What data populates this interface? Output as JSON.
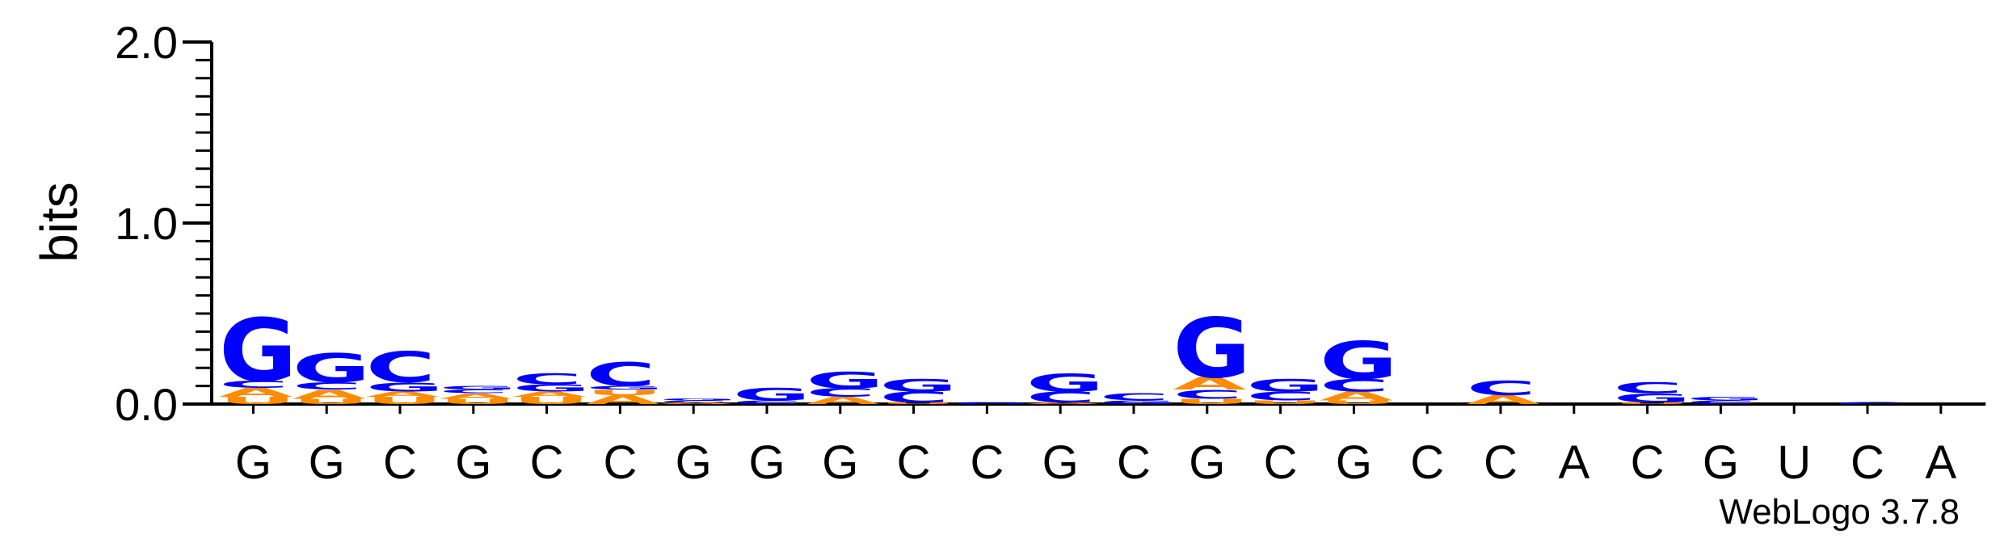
{
  "chart_data": {
    "type": "sequence-logo",
    "ylabel": "bits",
    "ylim": [
      0,
      2.0
    ],
    "yticks": [
      {
        "value": 0.0,
        "label": "0.0"
      },
      {
        "value": 1.0,
        "label": "1.0"
      },
      {
        "value": 2.0,
        "label": "2.0"
      }
    ],
    "y_minor_step": 0.1,
    "credit": "WebLogo 3.7.8",
    "colors": {
      "G": "#0000ff",
      "C": "#0000ff",
      "A": "#ff8c00",
      "U": "#ff8c00"
    },
    "positions": [
      {
        "label": "G",
        "stack": [
          {
            "letter": "U",
            "bits": 0.04
          },
          {
            "letter": "A",
            "bits": 0.05
          },
          {
            "letter": "C",
            "bits": 0.04
          },
          {
            "letter": "G",
            "bits": 0.35
          }
        ]
      },
      {
        "label": "G",
        "stack": [
          {
            "letter": "U",
            "bits": 0.03
          },
          {
            "letter": "A",
            "bits": 0.05
          },
          {
            "letter": "C",
            "bits": 0.04
          },
          {
            "letter": "G",
            "bits": 0.16
          }
        ]
      },
      {
        "label": "C",
        "stack": [
          {
            "letter": "U",
            "bits": 0.04
          },
          {
            "letter": "A",
            "bits": 0.03
          },
          {
            "letter": "G",
            "bits": 0.05
          },
          {
            "letter": "C",
            "bits": 0.17
          }
        ]
      },
      {
        "label": "G",
        "stack": [
          {
            "letter": "U",
            "bits": 0.03
          },
          {
            "letter": "A",
            "bits": 0.03
          },
          {
            "letter": "C",
            "bits": 0.02
          },
          {
            "letter": "G",
            "bits": 0.02
          }
        ]
      },
      {
        "label": "C",
        "stack": [
          {
            "letter": "U",
            "bits": 0.04
          },
          {
            "letter": "A",
            "bits": 0.03
          },
          {
            "letter": "G",
            "bits": 0.04
          },
          {
            "letter": "C",
            "bits": 0.06
          }
        ]
      },
      {
        "label": "C",
        "stack": [
          {
            "letter": "A",
            "bits": 0.05
          },
          {
            "letter": "U",
            "bits": 0.03
          },
          {
            "letter": "G",
            "bits": 0.02
          },
          {
            "letter": "C",
            "bits": 0.13
          }
        ]
      },
      {
        "label": "G",
        "stack": [
          {
            "letter": "A",
            "bits": 0.01
          },
          {
            "letter": "C",
            "bits": 0.01
          },
          {
            "letter": "G",
            "bits": 0.01
          }
        ]
      },
      {
        "label": "G",
        "stack": [
          {
            "letter": "C",
            "bits": 0.02
          },
          {
            "letter": "G",
            "bits": 0.07
          }
        ]
      },
      {
        "label": "G",
        "stack": [
          {
            "letter": "A",
            "bits": 0.04
          },
          {
            "letter": "C",
            "bits": 0.05
          },
          {
            "letter": "G",
            "bits": 0.09
          }
        ]
      },
      {
        "label": "C",
        "stack": [
          {
            "letter": "U",
            "bits": 0.01
          },
          {
            "letter": "C",
            "bits": 0.06
          },
          {
            "letter": "G",
            "bits": 0.07
          }
        ]
      },
      {
        "label": "C",
        "stack": [
          {
            "letter": "G",
            "bits": 0.005
          },
          {
            "letter": "C",
            "bits": 0.005
          }
        ]
      },
      {
        "label": "G",
        "stack": [
          {
            "letter": "A",
            "bits": 0.01
          },
          {
            "letter": "C",
            "bits": 0.06
          },
          {
            "letter": "G",
            "bits": 0.1
          }
        ]
      },
      {
        "label": "C",
        "stack": [
          {
            "letter": "G",
            "bits": 0.02
          },
          {
            "letter": "C",
            "bits": 0.04
          }
        ]
      },
      {
        "label": "G",
        "stack": [
          {
            "letter": "U",
            "bits": 0.03
          },
          {
            "letter": "C",
            "bits": 0.05
          },
          {
            "letter": "A",
            "bits": 0.07
          },
          {
            "letter": "G",
            "bits": 0.33
          }
        ]
      },
      {
        "label": "C",
        "stack": [
          {
            "letter": "U",
            "bits": 0.02
          },
          {
            "letter": "C",
            "bits": 0.05
          },
          {
            "letter": "G",
            "bits": 0.07
          }
        ]
      },
      {
        "label": "G",
        "stack": [
          {
            "letter": "U",
            "bits": 0.02
          },
          {
            "letter": "A",
            "bits": 0.05
          },
          {
            "letter": "C",
            "bits": 0.07
          },
          {
            "letter": "G",
            "bits": 0.21
          }
        ]
      },
      {
        "label": "C",
        "stack": []
      },
      {
        "label": "C",
        "stack": [
          {
            "letter": "A",
            "bits": 0.05
          },
          {
            "letter": "C",
            "bits": 0.08
          }
        ]
      },
      {
        "label": "A",
        "stack": []
      },
      {
        "label": "C",
        "stack": [
          {
            "letter": "U",
            "bits": 0.01
          },
          {
            "letter": "G",
            "bits": 0.05
          },
          {
            "letter": "C",
            "bits": 0.06
          }
        ]
      },
      {
        "label": "G",
        "stack": [
          {
            "letter": "C",
            "bits": 0.02
          },
          {
            "letter": "G",
            "bits": 0.02
          }
        ]
      },
      {
        "label": "U",
        "stack": []
      },
      {
        "label": "C",
        "stack": [
          {
            "letter": "C",
            "bits": 0.01
          }
        ]
      },
      {
        "label": "A",
        "stack": []
      }
    ]
  }
}
